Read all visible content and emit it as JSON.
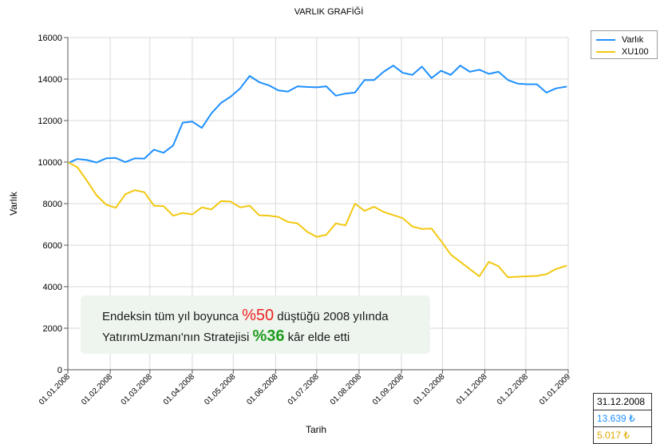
{
  "chart_data": {
    "type": "line",
    "title": "VARLIK GRAFİĞİ",
    "xlabel": "Tarih",
    "ylabel": "Varlık",
    "ylim": [
      0,
      16000
    ],
    "yticks": [
      0,
      2000,
      4000,
      6000,
      8000,
      10000,
      12000,
      14000,
      16000
    ],
    "ytick_labels": [
      "0",
      "2000",
      "4000",
      "6000",
      "8000",
      "10000",
      "12000",
      "14000",
      "16000"
    ],
    "xtick_labels": [
      "01.01.2008",
      "01.02.2008",
      "01.03.2008",
      "01.04.2008",
      "01.05.2008",
      "01.06.2008",
      "01.07.2008",
      "01.08.2008",
      "01.09.2008",
      "01.10.2008",
      "01.11.2008",
      "01.12.2008",
      "01.01.2009"
    ],
    "grid": true,
    "legend_position": "top-right",
    "series": [
      {
        "name": "Varlık",
        "color": "#1e90ff",
        "x": [
          "2008-01-01",
          "2008-01-08",
          "2008-01-15",
          "2008-01-22",
          "2008-01-29",
          "2008-02-05",
          "2008-02-12",
          "2008-02-19",
          "2008-02-26",
          "2008-03-04",
          "2008-03-11",
          "2008-03-18",
          "2008-03-25",
          "2008-04-01",
          "2008-04-08",
          "2008-04-15",
          "2008-04-22",
          "2008-04-29",
          "2008-05-06",
          "2008-05-13",
          "2008-05-20",
          "2008-05-27",
          "2008-06-03",
          "2008-06-10",
          "2008-06-17",
          "2008-06-24",
          "2008-07-01",
          "2008-07-08",
          "2008-07-15",
          "2008-07-22",
          "2008-07-29",
          "2008-08-05",
          "2008-08-12",
          "2008-08-19",
          "2008-08-26",
          "2008-09-02",
          "2008-09-09",
          "2008-09-16",
          "2008-09-23",
          "2008-09-30",
          "2008-10-07",
          "2008-10-14",
          "2008-10-21",
          "2008-10-28",
          "2008-11-04",
          "2008-11-11",
          "2008-11-18",
          "2008-11-25",
          "2008-12-02",
          "2008-12-09",
          "2008-12-16",
          "2008-12-23",
          "2008-12-31"
        ],
        "y": [
          9950,
          10150,
          10100,
          9980,
          10180,
          10200,
          10000,
          10180,
          10170,
          10600,
          10450,
          10800,
          11900,
          11950,
          11650,
          12350,
          12850,
          13150,
          13550,
          14150,
          13850,
          13700,
          13450,
          13400,
          13650,
          13620,
          13600,
          13650,
          13200,
          13300,
          13350,
          13950,
          13950,
          14350,
          14650,
          14300,
          14200,
          14600,
          14050,
          14400,
          14200,
          14650,
          14350,
          14450,
          14250,
          14350,
          13950,
          13780,
          13750,
          13750,
          13350,
          13550,
          13639
        ]
      },
      {
        "name": "XU100",
        "color": "#f2c811",
        "x": [
          "2008-01-01",
          "2008-01-08",
          "2008-01-15",
          "2008-01-22",
          "2008-01-29",
          "2008-02-05",
          "2008-02-12",
          "2008-02-19",
          "2008-02-26",
          "2008-03-04",
          "2008-03-11",
          "2008-03-18",
          "2008-03-25",
          "2008-04-01",
          "2008-04-08",
          "2008-04-15",
          "2008-04-22",
          "2008-04-29",
          "2008-05-06",
          "2008-05-13",
          "2008-05-20",
          "2008-05-27",
          "2008-06-03",
          "2008-06-10",
          "2008-06-17",
          "2008-06-24",
          "2008-07-01",
          "2008-07-08",
          "2008-07-15",
          "2008-07-22",
          "2008-07-29",
          "2008-08-05",
          "2008-08-12",
          "2008-08-19",
          "2008-08-26",
          "2008-09-02",
          "2008-09-09",
          "2008-09-16",
          "2008-09-23",
          "2008-09-30",
          "2008-10-07",
          "2008-10-14",
          "2008-10-21",
          "2008-10-28",
          "2008-11-04",
          "2008-11-11",
          "2008-11-18",
          "2008-11-25",
          "2008-12-02",
          "2008-12-09",
          "2008-12-16",
          "2008-12-23",
          "2008-12-31"
        ],
        "y": [
          10000,
          9750,
          9100,
          8400,
          7950,
          7800,
          8450,
          8650,
          8550,
          7900,
          7880,
          7420,
          7550,
          7480,
          7820,
          7720,
          8120,
          8100,
          7820,
          7900,
          7440,
          7420,
          7360,
          7120,
          7050,
          6650,
          6400,
          6500,
          7050,
          6950,
          8000,
          7650,
          7850,
          7600,
          7450,
          7300,
          6900,
          6780,
          6800,
          6200,
          5550,
          5200,
          4850,
          4500,
          5200,
          4980,
          4450,
          4480,
          4500,
          4520,
          4600,
          4850,
          5017
        ]
      }
    ]
  },
  "callout": {
    "line1_prefix": "Endeksin tüm yıl boyunca ",
    "line1_pct": "%50",
    "line1_suffix": " düştüğü 2008 yılında",
    "line2_prefix": "YatırımUzmanı'nın Stratejisi ",
    "line2_pct": "%36",
    "line2_suffix": " kâr elde etti"
  },
  "info_box": {
    "date": "31.12.2008",
    "varlik_value": "13.639 ₺",
    "xu100_value": "5.017 ₺"
  }
}
